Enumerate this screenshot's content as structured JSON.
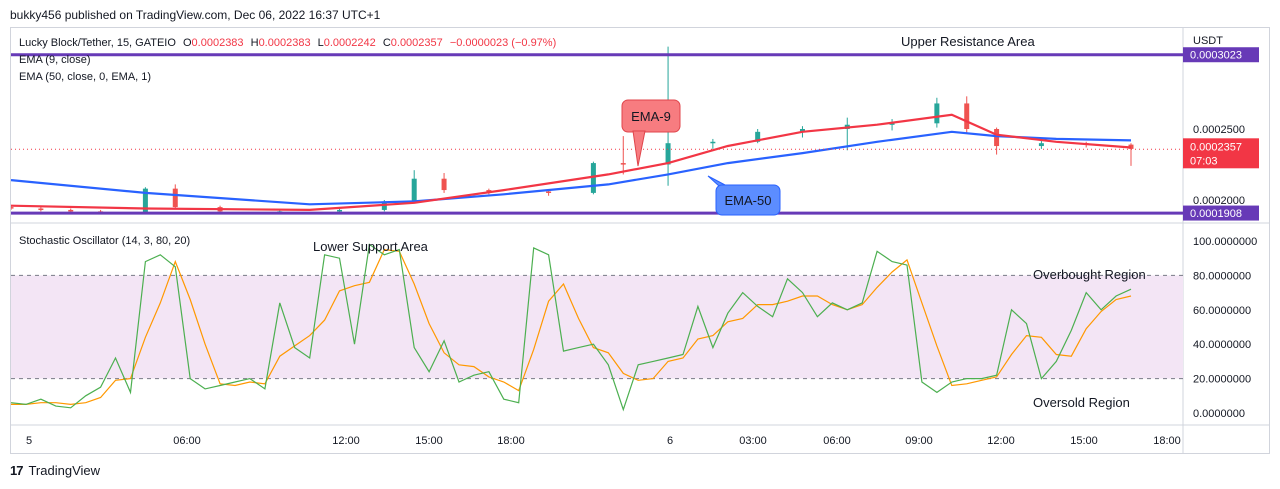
{
  "header": {
    "publisher_line": "bukky456 published on TradingView.com, Dec 06, 2022 16:37 UTC+1"
  },
  "legend": {
    "symbol": "Lucky Block/Tether, 15, GATEIO",
    "open_label": "O",
    "open_value": "0.0002383",
    "high_label": "H",
    "high_value": "0.0002383",
    "low_label": "L",
    "low_value": "0.0002242",
    "close_label": "C",
    "close_value": "0.0002357",
    "change": "−0.0000023 (−0.97%)",
    "ema9": "EMA (9, close)",
    "ema50": "EMA (50, close, 0, EMA, 1)"
  },
  "osc_legend": "Stochastic Oscillator (14, 3, 80, 20)",
  "annotations": {
    "upper_resistance": "Upper Resistance Area",
    "lower_support": "Lower Support Area",
    "overbought": "Overbought Region",
    "oversold": "Oversold Region",
    "ema9_callout": "EMA-9",
    "ema50_callout": "EMA-50"
  },
  "price_axis": {
    "currency": "USDT",
    "ticks": [
      "0.0002500",
      "0.0002000"
    ],
    "resistance_label": "0.0003023",
    "support_label": "0.0001908",
    "last_price_label": "0.0002357",
    "countdown": "07:03"
  },
  "osc_axis": {
    "ticks": [
      "100.0000000",
      "80.0000000",
      "60.0000000",
      "40.0000000",
      "20.0000000",
      "0.0000000"
    ]
  },
  "time_axis": {
    "ticks": [
      "5",
      "06:00",
      "12:00",
      "15:00",
      "18:00",
      "6",
      "03:00",
      "06:00",
      "09:00",
      "12:00",
      "15:00",
      "18:00"
    ]
  },
  "footer": {
    "logo_mark": "17",
    "brand": "TradingView"
  },
  "colors": {
    "ema9": "#f23645",
    "ema50": "#2962ff",
    "up": "#26a69a",
    "down": "#ef5350",
    "level_line": "#673ab7",
    "stoch_k": "#4caf50",
    "stoch_d": "#ff9800",
    "stoch_band": "#f3e5f5",
    "last_price": "#f23645"
  },
  "chart_data": [
    {
      "type": "candlestick",
      "title": "Lucky Block/Tether, 15, GATEIO",
      "ylim": [
        0.00018,
        0.00032
      ],
      "levels": {
        "resistance": 0.0003023,
        "support": 0.0001908,
        "last_close": 0.0002357
      },
      "time_range": [
        "Dec 5 00:00",
        "Dec 6 17:00"
      ],
      "ohlc_points": [
        [
          0,
          0.000195,
          0.000196,
          0.000193,
          0.000194
        ],
        [
          2,
          0.000194,
          0.000195,
          0.000192,
          0.000193
        ],
        [
          4,
          0.000193,
          0.000194,
          0.000191,
          0.000192
        ],
        [
          6,
          0.000192,
          0.000193,
          0.00019,
          0.000191
        ],
        [
          9,
          0.000191,
          0.000209,
          0.00019,
          0.000208
        ],
        [
          11,
          0.000208,
          0.000211,
          0.000194,
          0.000195
        ],
        [
          14,
          0.000195,
          0.000196,
          0.000191,
          0.000192
        ],
        [
          18,
          0.000192,
          0.000193,
          0.000191,
          0.000192
        ],
        [
          22,
          0.000192,
          0.000194,
          0.000191,
          0.000193
        ],
        [
          25,
          0.000193,
          0.0002,
          0.000192,
          0.000199
        ],
        [
          27,
          0.000199,
          0.000221,
          0.000198,
          0.000215
        ],
        [
          29,
          0.000215,
          0.000219,
          0.000205,
          0.000207
        ],
        [
          32,
          0.000207,
          0.000208,
          0.000204,
          0.000206
        ],
        [
          36,
          0.000206,
          0.000207,
          0.000203,
          0.000205
        ],
        [
          39,
          0.000205,
          0.000227,
          0.000204,
          0.000226
        ],
        [
          41,
          0.000226,
          0.000245,
          0.000218,
          0.000225
        ],
        [
          44,
          0.000225,
          0.000308,
          0.00021,
          0.00024
        ],
        [
          47,
          0.00024,
          0.000243,
          0.000236,
          0.000241
        ],
        [
          50,
          0.000241,
          0.00025,
          0.00024,
          0.000248
        ],
        [
          53,
          0.000248,
          0.000252,
          0.000244,
          0.00025
        ],
        [
          56,
          0.00025,
          0.000258,
          0.000235,
          0.000253
        ],
        [
          59,
          0.000253,
          0.000257,
          0.000249,
          0.000254
        ],
        [
          62,
          0.000254,
          0.000272,
          0.000251,
          0.000268
        ],
        [
          64,
          0.000268,
          0.000273,
          0.000247,
          0.00025
        ],
        [
          66,
          0.00025,
          0.000251,
          0.000232,
          0.000238
        ],
        [
          69,
          0.000238,
          0.000242,
          0.000236,
          0.00024
        ],
        [
          72,
          0.00024,
          0.000241,
          0.000237,
          0.000239
        ],
        [
          75,
          0.000239,
          0.00024,
          0.000224,
          0.000236
        ]
      ],
      "ema9": [
        [
          0,
          0.000196
        ],
        [
          9,
          0.000194
        ],
        [
          20,
          0.000193
        ],
        [
          27,
          0.000198
        ],
        [
          33,
          0.000207
        ],
        [
          40,
          0.000218
        ],
        [
          44,
          0.000226
        ],
        [
          48,
          0.000238
        ],
        [
          53,
          0.000248
        ],
        [
          58,
          0.000253
        ],
        [
          63,
          0.00026
        ],
        [
          66,
          0.000246
        ],
        [
          70,
          0.000241
        ],
        [
          75,
          0.000237
        ]
      ],
      "ema50": [
        [
          0,
          0.000214
        ],
        [
          9,
          0.000205
        ],
        [
          20,
          0.000197
        ],
        [
          27,
          0.000199
        ],
        [
          33,
          0.000204
        ],
        [
          40,
          0.000211
        ],
        [
          44,
          0.000218
        ],
        [
          48,
          0.000226
        ],
        [
          53,
          0.000233
        ],
        [
          58,
          0.000241
        ],
        [
          63,
          0.000248
        ],
        [
          66,
          0.000245
        ],
        [
          70,
          0.000243
        ],
        [
          75,
          0.000242
        ]
      ]
    },
    {
      "type": "line",
      "title": "Stochastic Oscillator (14, 3, 80, 20)",
      "ylim": [
        0,
        100
      ],
      "bands": {
        "upper": 80,
        "lower": 20
      },
      "series": [
        {
          "name": "%K",
          "x": [
            0,
            1,
            2,
            3,
            4,
            5,
            6,
            7,
            8,
            9,
            10,
            11,
            12,
            13,
            14,
            15,
            16,
            17,
            18,
            19,
            20,
            21,
            22,
            23,
            24,
            25,
            26,
            27,
            28,
            29,
            30,
            31,
            32,
            33,
            34,
            35,
            36,
            37,
            38,
            39,
            40,
            41,
            42,
            43,
            44,
            45,
            46,
            47,
            48,
            49,
            50,
            51,
            52,
            53,
            54,
            55,
            56,
            57,
            58,
            59,
            60,
            61,
            62,
            63,
            64,
            65,
            66,
            67,
            68,
            69,
            70,
            71,
            72,
            73,
            74,
            75
          ],
          "values": [
            6,
            5,
            8,
            4,
            3,
            10,
            15,
            32,
            12,
            88,
            92,
            85,
            20,
            14,
            16,
            18,
            20,
            14,
            64,
            38,
            32,
            92,
            90,
            40,
            98,
            92,
            95,
            38,
            24,
            42,
            18,
            22,
            24,
            8,
            6,
            96,
            92,
            36,
            38,
            40,
            28,
            2,
            28,
            30,
            32,
            34,
            62,
            38,
            58,
            70,
            62,
            56,
            78,
            70,
            56,
            64,
            60,
            64,
            94,
            88,
            86,
            18,
            12,
            18,
            20,
            20,
            22,
            60,
            52,
            20,
            30,
            48,
            70,
            60,
            68,
            72
          ]
        },
        {
          "name": "%D",
          "x": [
            0,
            1,
            2,
            3,
            4,
            5,
            6,
            7,
            8,
            9,
            10,
            11,
            12,
            13,
            14,
            15,
            16,
            17,
            18,
            19,
            20,
            21,
            22,
            23,
            24,
            25,
            26,
            27,
            28,
            29,
            30,
            31,
            32,
            33,
            34,
            35,
            36,
            37,
            38,
            39,
            40,
            41,
            42,
            43,
            44,
            45,
            46,
            47,
            48,
            49,
            50,
            51,
            52,
            53,
            54,
            55,
            56,
            57,
            58,
            59,
            60,
            61,
            62,
            63,
            64,
            65,
            66,
            67,
            68,
            69,
            70,
            71,
            72,
            73,
            74,
            75
          ],
          "values": [
            5,
            5,
            6,
            6,
            5,
            6,
            9,
            19,
            20,
            44,
            64,
            88,
            66,
            40,
            17,
            16,
            18,
            17,
            33,
            39,
            45,
            54,
            71,
            74,
            76,
            95,
            94,
            75,
            52,
            35,
            28,
            27,
            21,
            18,
            13,
            37,
            65,
            75,
            55,
            38,
            35,
            23,
            19,
            20,
            30,
            32,
            43,
            45,
            53,
            55,
            63,
            63,
            65,
            68,
            68,
            63,
            60,
            63,
            73,
            82,
            89,
            64,
            39,
            16,
            17,
            19,
            21,
            34,
            45,
            44,
            34,
            33,
            49,
            59,
            66,
            68
          ]
        }
      ]
    }
  ]
}
